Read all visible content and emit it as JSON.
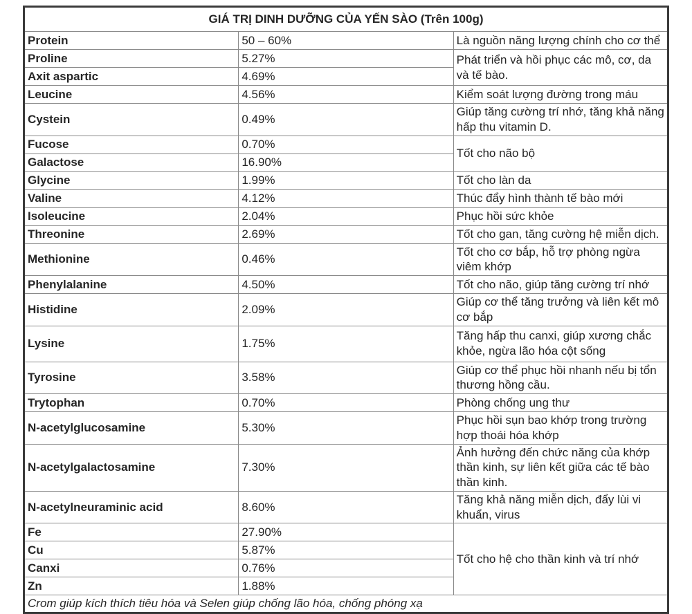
{
  "table": {
    "title": "GIÁ TRỊ DINH DƯỠNG CỦA YẾN SÀO (Trên 100g)",
    "rows": [
      {
        "name": "Protein",
        "value": "50 – 60%",
        "benefit": "Là nguồn năng lượng chính cho cơ thể"
      },
      {
        "name": "Proline",
        "value": "5.27%",
        "benefit": "Phát triển và hồi phục các mô, cơ, da và tế bào."
      },
      {
        "name": "Axit aspartic",
        "value": "4.69%"
      },
      {
        "name": "Leucine",
        "value": "4.56%",
        "benefit": "Kiểm soát lượng đường trong máu"
      },
      {
        "name": "Cystein",
        "value": "0.49%",
        "benefit": "Giúp tăng cường trí nhớ, tăng khả năng hấp thu vitamin D."
      },
      {
        "name": "Fucose",
        "value": "0.70%",
        "benefit": "Tốt cho não bộ"
      },
      {
        "name": "Galactose",
        "value": "16.90%"
      },
      {
        "name": "Glycine",
        "value": "1.99%",
        "benefit": "Tốt cho làn da"
      },
      {
        "name": "Valine",
        "value": "4.12%",
        "benefit": "Thúc đẩy hình thành tế bào mới"
      },
      {
        "name": "Isoleucine",
        "value": "2.04%",
        "benefit": "Phục hồi sức khỏe"
      },
      {
        "name": "Threonine",
        "value": "2.69%",
        "benefit": "Tốt cho gan, tăng cường hệ miễn dịch."
      },
      {
        "name": "Methionine",
        "value": "0.46%",
        "benefit": "Tốt cho cơ bắp, hỗ trợ phòng ngừa viêm khớp"
      },
      {
        "name": "Phenylalanine",
        "value": "4.50%",
        "benefit": "Tốt cho não, giúp tăng cường trí nhớ"
      },
      {
        "name": "Histidine",
        "value": "2.09%",
        "benefit": "Giúp cơ thể tăng trưởng và liên kết mô cơ bắp"
      },
      {
        "name": "Lysine",
        "value": "1.75%",
        "benefit": "Tăng hấp thu canxi, giúp xương chắc khỏe, ngừa lão hóa cột sống"
      },
      {
        "name": "Tyrosine",
        "value": "3.58%",
        "benefit": "Giúp cơ thể phục hồi nhanh nếu bị tổn thương hồng cầu."
      },
      {
        "name": "Trytophan",
        "value": "0.70%",
        "benefit": "Phòng chống ung thư"
      },
      {
        "name": "N-acetylglucosamine",
        "value": "5.30%",
        "benefit": "Phục hồi sụn bao khớp trong trường hợp thoái hóa khớp"
      },
      {
        "name": "N-acetylgalactosamine",
        "value": "7.30%",
        "benefit": "Ảnh hưởng đến chức năng của khớp thần kinh, sự liên kết giữa các tế bào thần kinh."
      },
      {
        "name": "N-acetylneuraminic acid",
        "value": "8.60%",
        "benefit": "Tăng khả năng miễn dịch, đẩy lùi vi khuẩn, virus"
      },
      {
        "name": "Fe",
        "value": "27.90%",
        "benefit": "Tốt cho hệ cho thần kinh và trí nhớ"
      },
      {
        "name": "Cu",
        "value": "5.87%"
      },
      {
        "name": "Canxi",
        "value": "0.76%"
      },
      {
        "name": "Zn",
        "value": "1.88%"
      }
    ],
    "footer_note": "Crom giúp kích thích tiêu hóa và Selen giúp chống lão hóa, chống phóng xạ",
    "colors": {
      "text": "#262626",
      "outer_border": "#3a3a3a",
      "inner_border": "#8a8a8a",
      "background": "#ffffff"
    }
  }
}
